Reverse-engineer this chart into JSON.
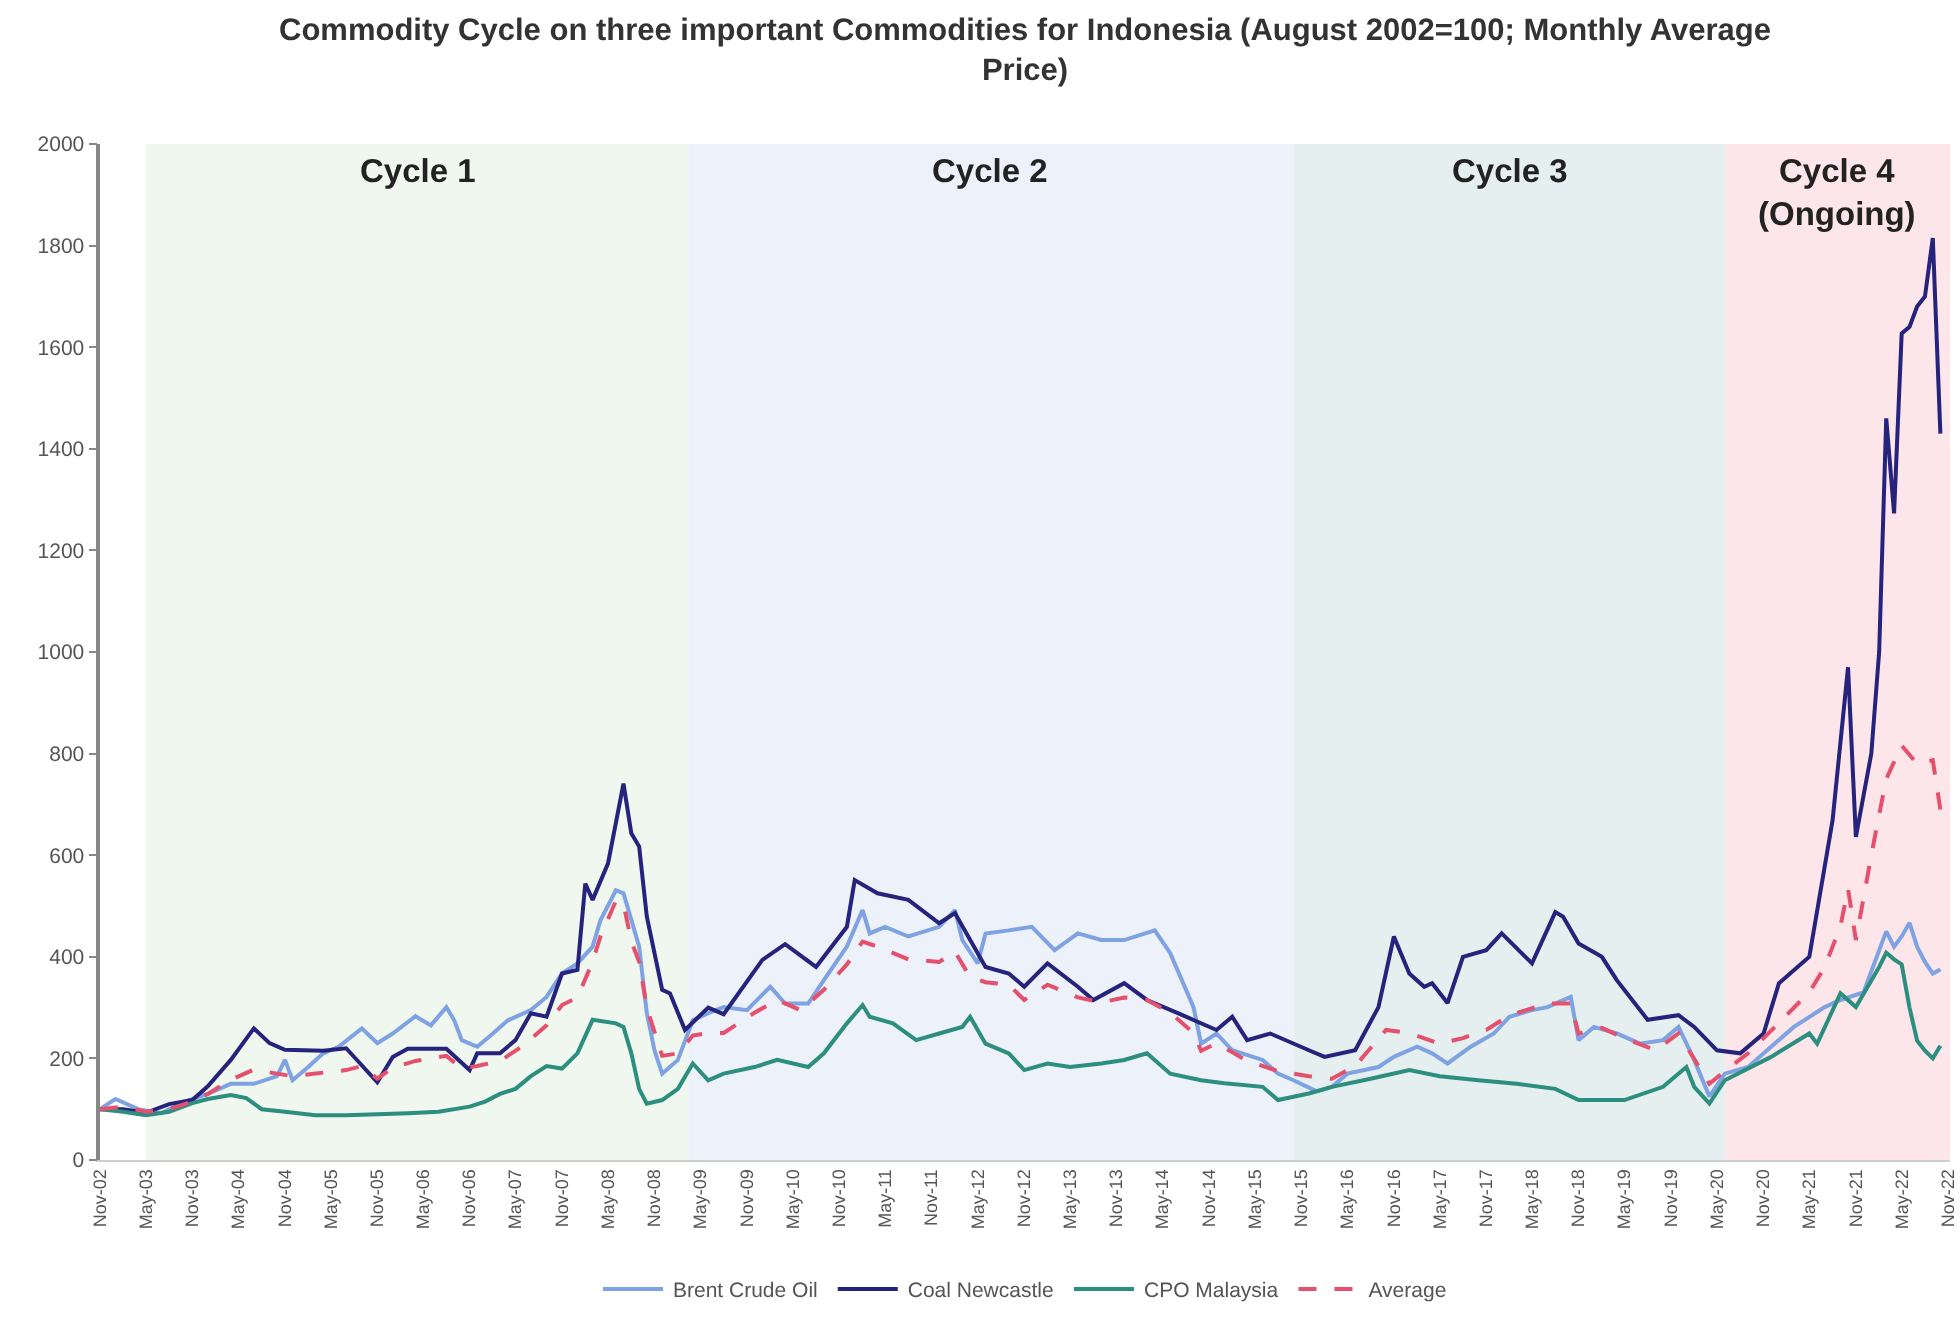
{
  "chart_data": {
    "type": "line",
    "title": "Commodity Cycle on three important Commodities for Indonesia (August 2002=100; Monthly Average Price)",
    "series": [
      {
        "name": "Brent Crude Oil",
        "color": "#7ea2e2",
        "x": [
          "2002-11",
          "2003-01",
          "2003-04",
          "2003-07",
          "2003-10",
          "2004-01",
          "2004-04",
          "2004-07",
          "2004-10",
          "2004-11",
          "2004-12",
          "2005-02",
          "2005-04",
          "2005-06",
          "2005-09",
          "2005-11",
          "2006-01",
          "2006-04",
          "2006-06",
          "2006-08",
          "2006-09",
          "2006-10",
          "2006-12",
          "2007-02",
          "2007-04",
          "2007-07",
          "2007-09",
          "2007-11",
          "2008-01",
          "2008-03",
          "2008-04",
          "2008-06",
          "2008-07",
          "2008-09",
          "2008-10",
          "2008-11",
          "2008-12",
          "2009-02",
          "2009-04",
          "2009-06",
          "2009-08",
          "2009-11",
          "2010-02",
          "2010-04",
          "2010-07",
          "2010-09",
          "2010-12",
          "2011-02",
          "2011-03",
          "2011-05",
          "2011-08",
          "2011-12",
          "2012-02",
          "2012-03",
          "2012-05",
          "2012-06",
          "2012-09",
          "2012-12",
          "2013-03",
          "2013-06",
          "2013-09",
          "2013-12",
          "2014-04",
          "2014-06",
          "2014-09",
          "2014-10",
          "2014-12",
          "2015-02",
          "2015-06",
          "2015-08",
          "2015-10",
          "2016-01",
          "2016-03",
          "2016-05",
          "2016-09",
          "2016-11",
          "2017-02",
          "2017-04",
          "2017-06",
          "2017-09",
          "2017-12",
          "2018-02",
          "2018-05",
          "2018-07",
          "2018-10",
          "2018-11",
          "2019-01",
          "2019-04",
          "2019-07",
          "2019-10",
          "2019-12",
          "2020-02",
          "2020-04",
          "2020-06",
          "2020-09",
          "2020-12",
          "2021-03",
          "2021-07",
          "2021-09",
          "2021-12",
          "2022-03",
          "2022-04",
          "2022-05",
          "2022-06",
          "2022-07",
          "2022-08",
          "2022-09",
          "2022-10"
        ],
        "values": [
          100,
          120,
          100,
          92,
          115,
          130,
          150,
          150,
          165,
          197,
          157,
          183,
          210,
          223,
          259,
          230,
          249,
          283,
          265,
          301,
          275,
          236,
          223,
          249,
          275,
          295,
          321,
          367,
          387,
          420,
          472,
          531,
          525,
          420,
          290,
          215,
          170,
          197,
          275,
          289,
          301,
          295,
          341,
          308,
          308,
          354,
          420,
          492,
          446,
          459,
          440,
          459,
          492,
          433,
          387,
          446,
          452,
          459,
          413,
          446,
          433,
          433,
          452,
          407,
          301,
          229,
          249,
          216,
          197,
          170,
          157,
          135,
          144,
          170,
          183,
          203,
          223,
          210,
          190,
          223,
          249,
          282,
          295,
          301,
          321,
          236,
          262,
          249,
          229,
          236,
          262,
          197,
          125,
          170,
          183,
          223,
          262,
          301,
          315,
          330,
          450,
          420,
          440,
          467,
          420,
          390,
          367,
          375
        ]
      },
      {
        "name": "Coal Newcastle",
        "color": "#25237c",
        "x": [
          "2002-11",
          "2003-02",
          "2003-05",
          "2003-08",
          "2003-11",
          "2004-01",
          "2004-04",
          "2004-07",
          "2004-09",
          "2004-11",
          "2005-04",
          "2005-07",
          "2005-11",
          "2006-01",
          "2006-03",
          "2006-08",
          "2006-11",
          "2006-12",
          "2007-03",
          "2007-05",
          "2007-07",
          "2007-09",
          "2007-11",
          "2008-01",
          "2008-02",
          "2008-03",
          "2008-05",
          "2008-07",
          "2008-08",
          "2008-09",
          "2008-10",
          "2008-12",
          "2009-01",
          "2009-03",
          "2009-06",
          "2009-08",
          "2010-01",
          "2010-04",
          "2010-08",
          "2010-12",
          "2011-01",
          "2011-04",
          "2011-08",
          "2011-12",
          "2012-02",
          "2012-06",
          "2012-09",
          "2012-11",
          "2013-02",
          "2013-06",
          "2013-08",
          "2013-12",
          "2014-03",
          "2014-07",
          "2014-12",
          "2015-02",
          "2015-04",
          "2015-07",
          "2015-12",
          "2016-02",
          "2016-06",
          "2016-09",
          "2016-11",
          "2017-01",
          "2017-03",
          "2017-04",
          "2017-06",
          "2017-08",
          "2017-11",
          "2018-01",
          "2018-05",
          "2018-08",
          "2018-09",
          "2018-11",
          "2019-02",
          "2019-04",
          "2019-08",
          "2019-12",
          "2020-02",
          "2020-05",
          "2020-08",
          "2020-11",
          "2021-01",
          "2021-05",
          "2021-08",
          "2021-10",
          "2021-11",
          "2022-01",
          "2022-02",
          "2022-03",
          "2022-04",
          "2022-05",
          "2022-06",
          "2022-07",
          "2022-08",
          "2022-09",
          "2022-10"
        ],
        "values": [
          100,
          100,
          93,
          110,
          118,
          145,
          197,
          259,
          230,
          217,
          215,
          220,
          153,
          203,
          219,
          219,
          177,
          210,
          210,
          236,
          289,
          282,
          367,
          374,
          544,
          512,
          584,
          741,
          643,
          617,
          480,
          335,
          328,
          256,
          300,
          287,
          394,
          425,
          380,
          459,
          551,
          525,
          512,
          466,
          486,
          380,
          367,
          341,
          387,
          341,
          315,
          348,
          315,
          289,
          256,
          282,
          236,
          249,
          216,
          203,
          216,
          301,
          440,
          367,
          341,
          348,
          309,
          400,
          413,
          446,
          387,
          488,
          479,
          426,
          400,
          354,
          276,
          285,
          262,
          216,
          210,
          249,
          348,
          400,
          669,
          970,
          636,
          800,
          1000,
          1460,
          1273,
          1627,
          1640,
          1680,
          1700,
          1815,
          1430
        ]
      },
      {
        "name": "CPO Malaysia",
        "color": "#2b8e7e",
        "x": [
          "2002-11",
          "2003-02",
          "2003-05",
          "2003-08",
          "2003-11",
          "2004-01",
          "2004-04",
          "2004-06",
          "2004-08",
          "2004-11",
          "2005-03",
          "2005-07",
          "2005-11",
          "2006-03",
          "2006-07",
          "2006-11",
          "2007-01",
          "2007-03",
          "2007-05",
          "2007-07",
          "2007-09",
          "2007-11",
          "2008-01",
          "2008-03",
          "2008-06",
          "2008-07",
          "2008-08",
          "2008-09",
          "2008-10",
          "2008-12",
          "2009-02",
          "2009-04",
          "2009-06",
          "2009-08",
          "2009-12",
          "2010-03",
          "2010-07",
          "2010-09",
          "2010-12",
          "2011-02",
          "2011-03",
          "2011-06",
          "2011-09",
          "2011-12",
          "2012-03",
          "2012-04",
          "2012-06",
          "2012-09",
          "2012-11",
          "2013-02",
          "2013-05",
          "2013-09",
          "2013-12",
          "2014-03",
          "2014-06",
          "2014-10",
          "2015-01",
          "2015-06",
          "2015-08",
          "2015-12",
          "2016-03",
          "2016-08",
          "2017-01",
          "2017-05",
          "2017-10",
          "2018-03",
          "2018-08",
          "2018-11",
          "2019-05",
          "2019-10",
          "2020-01",
          "2020-02",
          "2020-04",
          "2020-06",
          "2020-12",
          "2021-05",
          "2021-06",
          "2021-09",
          "2021-11",
          "2022-02",
          "2022-03",
          "2022-04",
          "2022-05",
          "2022-06",
          "2022-07",
          "2022-08",
          "2022-09",
          "2022-10"
        ],
        "values": [
          100,
          95,
          88,
          95,
          112,
          120,
          128,
          122,
          100,
          95,
          88,
          88,
          90,
          92,
          95,
          105,
          115,
          130,
          140,
          165,
          185,
          180,
          210,
          276,
          269,
          262,
          210,
          140,
          111,
          118,
          140,
          190,
          157,
          170,
          183,
          197,
          183,
          210,
          269,
          305,
          282,
          269,
          236,
          249,
          262,
          282,
          229,
          210,
          177,
          190,
          183,
          190,
          197,
          210,
          170,
          157,
          151,
          144,
          118,
          131,
          144,
          160,
          177,
          165,
          157,
          150,
          140,
          118,
          118,
          144,
          183,
          144,
          111,
          157,
          203,
          249,
          229,
          328,
          301,
          380,
          408,
          395,
          385,
          300,
          235,
          215,
          200,
          225
        ]
      },
      {
        "name": "Average",
        "color": "#e5506d",
        "line_style": "dashed",
        "x": [
          "2002-11",
          "2003-02",
          "2003-05",
          "2003-08",
          "2003-11",
          "2004-01",
          "2004-04",
          "2004-07",
          "2004-10",
          "2004-12",
          "2005-04",
          "2005-07",
          "2005-09",
          "2005-11",
          "2006-01",
          "2006-04",
          "2006-08",
          "2006-10",
          "2006-12",
          "2007-03",
          "2007-06",
          "2007-09",
          "2007-11",
          "2008-01",
          "2008-03",
          "2008-04",
          "2008-06",
          "2008-07",
          "2008-08",
          "2008-09",
          "2008-10",
          "2008-12",
          "2009-02",
          "2009-04",
          "2009-06",
          "2009-08",
          "2009-12",
          "2010-03",
          "2010-06",
          "2010-09",
          "2010-12",
          "2011-02",
          "2011-04",
          "2011-08",
          "2011-12",
          "2012-02",
          "2012-04",
          "2012-06",
          "2012-09",
          "2012-11",
          "2013-02",
          "2013-06",
          "2013-09",
          "2013-12",
          "2014-03",
          "2014-06",
          "2014-09",
          "2014-10",
          "2014-12",
          "2015-04",
          "2015-08",
          "2015-12",
          "2016-03",
          "2016-06",
          "2016-10",
          "2017-01",
          "2017-05",
          "2017-08",
          "2017-11",
          "2018-02",
          "2018-07",
          "2018-10",
          "2018-11",
          "2019-02",
          "2019-05",
          "2019-09",
          "2019-12",
          "2020-04",
          "2020-06",
          "2020-09",
          "2020-11",
          "2021-01",
          "2021-03",
          "2021-05",
          "2021-07",
          "2021-08",
          "2021-09",
          "2021-10",
          "2021-11",
          "2022-01",
          "2022-02",
          "2022-03",
          "2022-05",
          "2022-07",
          "2022-09",
          "2022-10"
        ],
        "values": [
          100,
          105,
          95,
          100,
          115,
          130,
          158,
          178,
          170,
          165,
          172,
          177,
          185,
          160,
          182,
          195,
          205,
          180,
          185,
          195,
          225,
          265,
          305,
          320,
          390,
          440,
          510,
          505,
          430,
          390,
          300,
          205,
          210,
          245,
          250,
          250,
          290,
          315,
          295,
          335,
          385,
          430,
          420,
          395,
          390,
          410,
          360,
          350,
          345,
          315,
          345,
          320,
          310,
          320,
          315,
          290,
          250,
          215,
          230,
          195,
          175,
          165,
          160,
          185,
          256,
          250,
          229,
          240,
          256,
          285,
          308,
          308,
          249,
          260,
          240,
          216,
          249,
          150,
          175,
          210,
          240,
          270,
          300,
          330,
          380,
          420,
          460,
          534,
          433,
          600,
          680,
          750,
          816,
          780,
          787,
          690
        ]
      }
    ],
    "line_style": "solid",
    "xlim": [
      "2002-11-01",
      "2022-11-08"
    ],
    "xticks": [
      {
        "value": "2002-11",
        "label": "Nov-02"
      },
      {
        "value": "2003-05",
        "label": "May-03"
      },
      {
        "value": "2003-11",
        "label": "Nov-03"
      },
      {
        "value": "2004-05",
        "label": "May-04"
      },
      {
        "value": "2004-11",
        "label": "Nov-04"
      },
      {
        "value": "2005-05",
        "label": "May-05"
      },
      {
        "value": "2005-11",
        "label": "Nov-05"
      },
      {
        "value": "2006-05",
        "label": "May-06"
      },
      {
        "value": "2006-11",
        "label": "Nov-06"
      },
      {
        "value": "2007-05",
        "label": "May-07"
      },
      {
        "value": "2007-11",
        "label": "Nov-07"
      },
      {
        "value": "2008-05",
        "label": "May-08"
      },
      {
        "value": "2008-11",
        "label": "Nov-08"
      },
      {
        "value": "2009-05",
        "label": "May-09"
      },
      {
        "value": "2009-11",
        "label": "Nov-09"
      },
      {
        "value": "2010-05",
        "label": "May-10"
      },
      {
        "value": "2010-11",
        "label": "Nov-10"
      },
      {
        "value": "2011-05",
        "label": "May-11"
      },
      {
        "value": "2011-11",
        "label": "Nov-11"
      },
      {
        "value": "2012-05",
        "label": "May-12"
      },
      {
        "value": "2012-11",
        "label": "Nov-12"
      },
      {
        "value": "2013-05",
        "label": "May-13"
      },
      {
        "value": "2013-11",
        "label": "Nov-13"
      },
      {
        "value": "2014-05",
        "label": "May-14"
      },
      {
        "value": "2014-11",
        "label": "Nov-14"
      },
      {
        "value": "2015-05",
        "label": "May-15"
      },
      {
        "value": "2015-11",
        "label": "Nov-15"
      },
      {
        "value": "2016-05",
        "label": "May-16"
      },
      {
        "value": "2016-11",
        "label": "Nov-16"
      },
      {
        "value": "2017-05",
        "label": "May-17"
      },
      {
        "value": "2017-11",
        "label": "Nov-17"
      },
      {
        "value": "2018-05",
        "label": "May-18"
      },
      {
        "value": "2018-11",
        "label": "Nov-18"
      },
      {
        "value": "2019-05",
        "label": "May-19"
      },
      {
        "value": "2019-11",
        "label": "Nov-19"
      },
      {
        "value": "2020-05",
        "label": "May-20"
      },
      {
        "value": "2020-11",
        "label": "Nov-20"
      },
      {
        "value": "2021-05",
        "label": "May-21"
      },
      {
        "value": "2021-11",
        "label": "Nov-21"
      },
      {
        "value": "2022-05",
        "label": "May-22"
      },
      {
        "value": "2022-11",
        "label": "Nov-22"
      }
    ],
    "ylim": [
      0,
      2000
    ],
    "yticks": [
      0,
      200,
      400,
      600,
      800,
      1000,
      1200,
      1400,
      1600,
      1800,
      2000
    ],
    "bands": [
      {
        "axis": "x",
        "from": "2003-05",
        "to": "2009-03-15",
        "label": "Cycle 1",
        "color": "#eff7ee"
      },
      {
        "axis": "x",
        "from": "2009-03-15",
        "to": "2015-10",
        "label": "Cycle 2",
        "color": "#edf1fa"
      },
      {
        "axis": "x",
        "from": "2015-10",
        "to": "2020-06",
        "label": "Cycle 3",
        "color": "#e5efef"
      },
      {
        "axis": "x",
        "from": "2020-06",
        "to": "2022-11-08",
        "label": "Cycle 4 (Ongoing)",
        "color": "#fce6ea"
      }
    ],
    "grid": false,
    "legend": "bottom"
  }
}
